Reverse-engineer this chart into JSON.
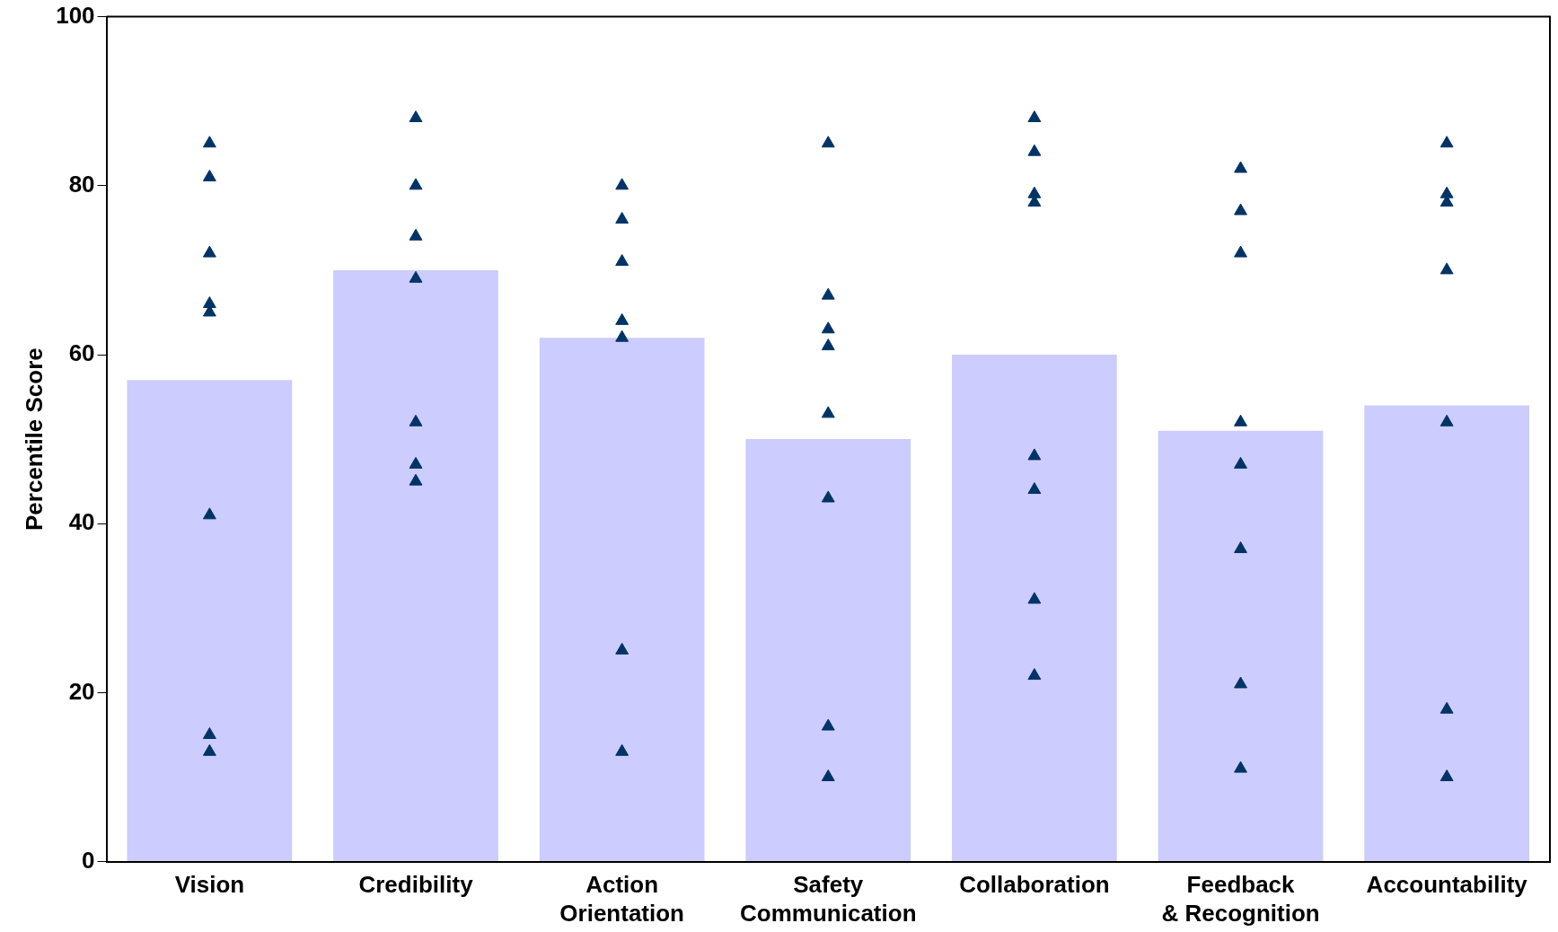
{
  "chart_data": {
    "type": "bar",
    "ylabel": "Percentile Score",
    "categories": [
      "Vision",
      "Credibility",
      "Action\nOrientation",
      "Safety\nCommunication",
      "Collaboration",
      "Feedback\n& Recognition",
      "Accountability"
    ],
    "series": [
      {
        "color": "#ccccff",
        "values": [
          57,
          70,
          62,
          50,
          60,
          51,
          54
        ]
      },
      {
        "type": "scatter",
        "color": "#003366",
        "marker": "triangle",
        "x": [
          "Vision",
          "Vision",
          "Vision",
          "Vision",
          "Vision",
          "Vision",
          "Vision",
          "Vision",
          "Credibility",
          "Credibility",
          "Credibility",
          "Credibility",
          "Credibility",
          "Credibility",
          "Credibility",
          "Action\nOrientation",
          "Action\nOrientation",
          "Action\nOrientation",
          "Action\nOrientation",
          "Action\nOrientation",
          "Action\nOrientation",
          "Action\nOrientation",
          "Safety\nCommunication",
          "Safety\nCommunication",
          "Safety\nCommunication",
          "Safety\nCommunication",
          "Safety\nCommunication",
          "Safety\nCommunication",
          "Safety\nCommunication",
          "Safety\nCommunication",
          "Collaboration",
          "Collaboration",
          "Collaboration",
          "Collaboration",
          "Collaboration",
          "Collaboration",
          "Collaboration",
          "Collaboration",
          "Feedback\n& Recognition",
          "Feedback\n& Recognition",
          "Feedback\n& Recognition",
          "Feedback\n& Recognition",
          "Feedback\n& Recognition",
          "Feedback\n& Recognition",
          "Feedback\n& Recognition",
          "Feedback\n& Recognition",
          "Accountability",
          "Accountability",
          "Accountability",
          "Accountability",
          "Accountability",
          "Accountability",
          "Accountability"
        ],
        "values": [
          85,
          81,
          72,
          66,
          65,
          41,
          15,
          13,
          88,
          80,
          74,
          69,
          52,
          47,
          45,
          80,
          76,
          71,
          64,
          62,
          25,
          13,
          85,
          67,
          63,
          61,
          53,
          43,
          16,
          10,
          88,
          84,
          79,
          78,
          48,
          44,
          31,
          22,
          82,
          77,
          72,
          52,
          47,
          37,
          21,
          11,
          85,
          79,
          78,
          70,
          52,
          18,
          10
        ]
      }
    ],
    "ylim": [
      0,
      100
    ],
    "yticks": [
      0,
      20,
      40,
      60,
      80,
      100
    ],
    "grid": false,
    "legend": false
  }
}
